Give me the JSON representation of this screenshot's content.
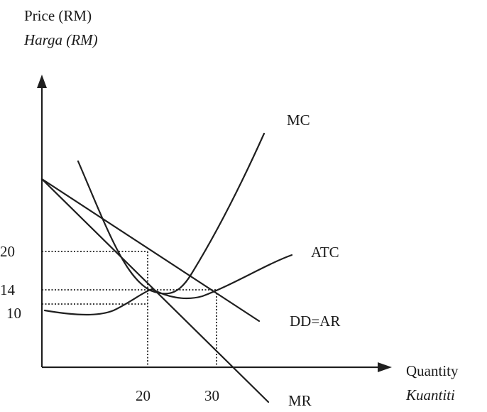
{
  "axes": {
    "y_label": "Price (RM)",
    "y_label_alt": "Harga (RM)",
    "x_label": "Quantity",
    "x_label_alt": "Kuantiti"
  },
  "y_ticks": [
    "20",
    "14",
    "10"
  ],
  "x_ticks": [
    "20",
    "30"
  ],
  "curves": {
    "mc": "MC",
    "atc": "ATC",
    "demand": "DD=AR",
    "mr": "MR"
  }
}
